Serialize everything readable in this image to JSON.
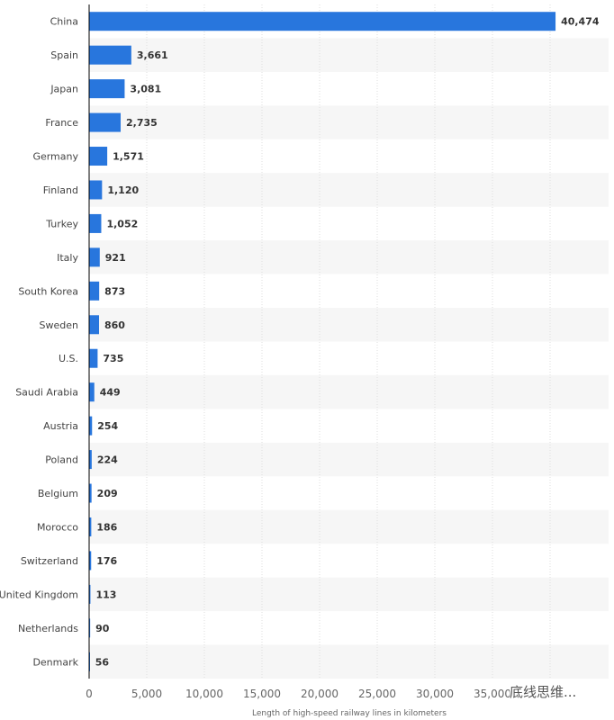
{
  "chart_data": {
    "type": "bar",
    "orientation": "horizontal",
    "categories": [
      "China",
      "Spain",
      "Japan",
      "France",
      "Germany",
      "Finland",
      "Turkey",
      "Italy",
      "South Korea",
      "Sweden",
      "U.S.",
      "Saudi Arabia",
      "Austria",
      "Poland",
      "Belgium",
      "Morocco",
      "Switzerland",
      "United Kingdom",
      "Netherlands",
      "Denmark"
    ],
    "values": [
      40474,
      3661,
      3081,
      2735,
      1571,
      1120,
      1052,
      921,
      873,
      860,
      735,
      449,
      254,
      224,
      209,
      186,
      176,
      113,
      90,
      56
    ],
    "value_labels": [
      "40,474",
      "3,661",
      "3,081",
      "2,735",
      "1,571",
      "1,120",
      "1,052",
      "921",
      "873",
      "860",
      "735",
      "449",
      "254",
      "224",
      "209",
      "186",
      "176",
      "113",
      "90",
      "56"
    ],
    "xlabel": "Length of high-speed railway lines in kilometers",
    "ylabel": "",
    "xlim": [
      0,
      45000
    ],
    "xticks": [
      0,
      5000,
      10000,
      15000,
      20000,
      25000,
      30000,
      35000
    ],
    "xtick_labels": [
      "0",
      "5,000",
      "10,000",
      "15,000",
      "20,000",
      "25,000",
      "30,000",
      "35,000"
    ],
    "grid": true,
    "bar_color": "#2876dd",
    "band_color": "#f6f6f6"
  },
  "watermark": "底线思维..."
}
